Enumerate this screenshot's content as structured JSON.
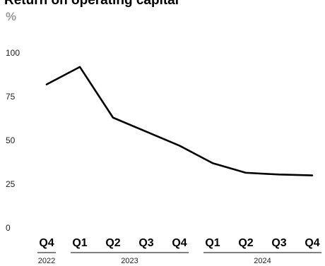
{
  "chart_data": {
    "type": "line",
    "title": "Return on operating capital",
    "unit": "%",
    "ylim": [
      0,
      100
    ],
    "yticks": [
      "0",
      "25",
      "50",
      "75",
      "100"
    ],
    "grid": false,
    "categories": [
      "Q4",
      "Q1",
      "Q2",
      "Q3",
      "Q4",
      "Q1",
      "Q2",
      "Q3",
      "Q4"
    ],
    "year_groups": [
      {
        "label": "2022",
        "start": 0,
        "end": 0
      },
      {
        "label": "2023",
        "start": 1,
        "end": 4
      },
      {
        "label": "2024",
        "start": 5,
        "end": 8
      }
    ],
    "series": [
      {
        "values": [
          82,
          92,
          63,
          55,
          47,
          37,
          31.5,
          30.5,
          30
        ],
        "color": "#000000"
      }
    ]
  }
}
